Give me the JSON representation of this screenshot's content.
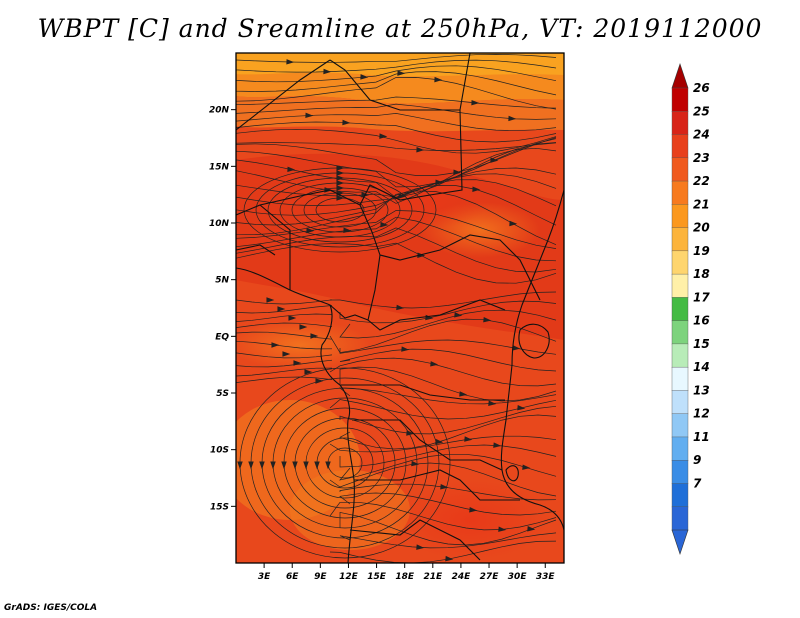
{
  "title": "WBPT [C] and Sreamline at 250hPa, VT: 2019112000",
  "credit": "GrADS: IGES/COLA",
  "map": {
    "lon_range": [
      0,
      35
    ],
    "lat_range": [
      -20,
      25
    ],
    "x_ticks": [
      "3E",
      "6E",
      "9E",
      "12E",
      "15E",
      "18E",
      "21E",
      "24E",
      "27E",
      "30E",
      "33E"
    ],
    "y_ticks": [
      "20N",
      "15N",
      "10N",
      "5N",
      "EQ",
      "5S",
      "10S",
      "15S"
    ],
    "field": "Wet-bulb potential temperature",
    "overlay": "streamlines"
  },
  "colorbar": {
    "labels": [
      "26",
      "25",
      "24",
      "23",
      "22",
      "21",
      "20",
      "19",
      "18",
      "17",
      "16",
      "15",
      "14",
      "13",
      "12",
      "11",
      "9",
      "7"
    ],
    "colors": [
      "#c00000",
      "#d82418",
      "#e8401c",
      "#f05a1e",
      "#f77a1e",
      "#fb981e",
      "#fcb43c",
      "#fed56e",
      "#fff0a8",
      "#44bb44",
      "#7dd37d",
      "#b8ecb8",
      "#e8f8ff",
      "#bfe0fb",
      "#90c8f5",
      "#62aef0",
      "#3a8de6",
      "#1f6fd8",
      "#2a66d6"
    ],
    "arrow_top_color": "#a50000",
    "arrow_bottom_color": "#2a66d6"
  }
}
